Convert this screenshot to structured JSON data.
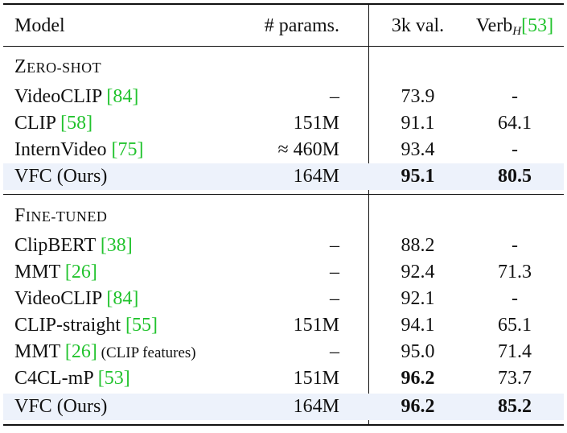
{
  "header": {
    "model": "Model",
    "params": "# params.",
    "val": "3k val.",
    "verb_base": "Verb",
    "verb_sub": "H",
    "verb_cite": "[53]"
  },
  "zero_shot": {
    "title_first": "Z",
    "title_rest": "ERO-SHOT",
    "rows": [
      {
        "model": "VideoCLIP ",
        "cite": "[84]",
        "params": "–",
        "val": "73.9",
        "verb": "-"
      },
      {
        "model": "CLIP ",
        "cite": "[58]",
        "params": "151M",
        "val": "91.1",
        "verb": "64.1"
      },
      {
        "model": "InternVideo ",
        "cite": "[75]",
        "params": "≈ 460M",
        "val": "93.4",
        "verb": "-"
      },
      {
        "model": "VFC (Ours)",
        "cite": "",
        "params": "164M",
        "val": "95.1",
        "verb": "80.5"
      }
    ]
  },
  "fine_tuned": {
    "title_first": "F",
    "title_rest": "INE-TUNED",
    "rows": [
      {
        "model": "ClipBERT ",
        "cite": "[38]",
        "params": "–",
        "val": "88.2",
        "verb": "-"
      },
      {
        "model": "MMT ",
        "cite": "[26]",
        "params": "–",
        "val": "92.4",
        "verb": "71.3"
      },
      {
        "model": "VideoCLIP ",
        "cite": "[84]",
        "params": "–",
        "val": "92.1",
        "verb": "-"
      },
      {
        "model": "CLIP-straight ",
        "cite": "[55]",
        "params": "151M",
        "val": "94.1",
        "verb": "65.1"
      },
      {
        "model": "MMT ",
        "cite": "[26]",
        "extra": " (CLIP features)",
        "params": "–",
        "val": "95.0",
        "verb": "71.4"
      },
      {
        "model": "C4CL-mP ",
        "cite": "[53]",
        "params": "151M",
        "val": "96.2",
        "verb": "73.7"
      },
      {
        "model": "VFC (Ours)",
        "cite": "",
        "params": "164M",
        "val": "96.2",
        "verb": "85.2"
      }
    ]
  }
}
